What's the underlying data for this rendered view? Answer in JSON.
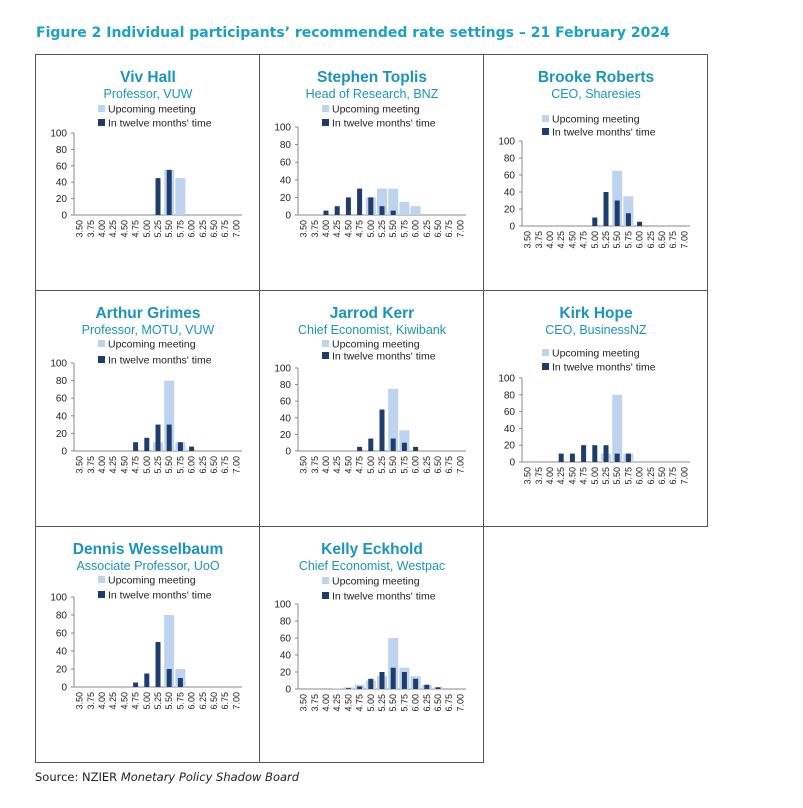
{
  "figure_title": "Figure 2 Individual participants’ recommended rate settings – 21 February 2024",
  "source_prefix": "Source: NZIER ",
  "source_italic": "Monetary Policy Shadow Board",
  "colors": {
    "upcoming": "#bed3ee",
    "twelve_months": "#1f3d6c",
    "title": "#1ba0c6",
    "panel_text": "#1a94bd"
  },
  "legend_labels": [
    "Upcoming meeting",
    "In twelve months' time"
  ],
  "chart_data": [
    {
      "type": "bar",
      "name_label": "Viv Hall",
      "role": "Professor, VUW",
      "categories": [
        "3.50",
        "3.75",
        "4.00",
        "4.25",
        "4.50",
        "4.75",
        "5.00",
        "5.25",
        "5.50",
        "5.75",
        "6.00",
        "6.25",
        "6.50",
        "6.75",
        "7.00"
      ],
      "yticks": [
        0,
        20,
        40,
        60,
        80,
        100
      ],
      "ylim": [
        0,
        100
      ],
      "series": [
        {
          "name": "Upcoming meeting",
          "values": [
            0,
            0,
            0,
            0,
            0,
            0,
            0,
            0,
            55,
            45,
            0,
            0,
            0,
            0,
            0
          ]
        },
        {
          "name": "In twelve months' time",
          "values": [
            0,
            0,
            0,
            0,
            0,
            0,
            0,
            45,
            55,
            0,
            0,
            0,
            0,
            0,
            0
          ]
        }
      ]
    },
    {
      "type": "bar",
      "name_label": "Stephen Toplis",
      "role": "Head of Research, BNZ",
      "categories": [
        "3.50",
        "3.75",
        "4.00",
        "4.25",
        "4.50",
        "4.75",
        "5.00",
        "5.25",
        "5.50",
        "5.75",
        "6.00",
        "6.25",
        "6.50",
        "6.75",
        "7.00"
      ],
      "yticks": [
        0,
        20,
        40,
        60,
        80,
        100
      ],
      "ylim": [
        0,
        100
      ],
      "series": [
        {
          "name": "Upcoming meeting",
          "values": [
            0,
            0,
            0,
            0,
            0,
            0,
            20,
            30,
            30,
            15,
            10,
            0,
            0,
            0,
            0
          ]
        },
        {
          "name": "In twelve months' time",
          "values": [
            0,
            0,
            5,
            10,
            20,
            30,
            20,
            10,
            5,
            0,
            0,
            0,
            0,
            0,
            0
          ]
        }
      ]
    },
    {
      "type": "bar",
      "name_label": "Brooke Roberts",
      "role": "CEO, Sharesies",
      "categories": [
        "3.50",
        "3.75",
        "4.00",
        "4.25",
        "4.50",
        "4.75",
        "5.00",
        "5.25",
        "5.50",
        "5.75",
        "6.00",
        "6.25",
        "6.50",
        "6.75",
        "7.00"
      ],
      "yticks": [
        0,
        20,
        40,
        60,
        80,
        100
      ],
      "ylim": [
        0,
        100
      ],
      "series": [
        {
          "name": "Upcoming meeting",
          "values": [
            0,
            0,
            0,
            0,
            0,
            0,
            0,
            0,
            65,
            35,
            0,
            0,
            0,
            0,
            0
          ]
        },
        {
          "name": "In twelve months' time",
          "values": [
            0,
            0,
            0,
            0,
            0,
            0,
            10,
            40,
            30,
            15,
            5,
            0,
            0,
            0,
            0
          ]
        }
      ]
    },
    {
      "type": "bar",
      "name_label": "Arthur Grimes",
      "role": "Professor, MOTU, VUW",
      "categories": [
        "3.50",
        "3.75",
        "4.00",
        "4.25",
        "4.50",
        "4.75",
        "5.00",
        "5.25",
        "5.50",
        "5.75",
        "6.00",
        "6.25",
        "6.50",
        "6.75",
        "7.00"
      ],
      "yticks": [
        0,
        20,
        40,
        60,
        80,
        100
      ],
      "ylim": [
        0,
        100
      ],
      "series": [
        {
          "name": "Upcoming meeting",
          "values": [
            0,
            0,
            0,
            0,
            0,
            0,
            0,
            10,
            80,
            10,
            0,
            0,
            0,
            0,
            0
          ]
        },
        {
          "name": "In twelve months' time",
          "values": [
            0,
            0,
            0,
            0,
            0,
            10,
            15,
            30,
            30,
            10,
            5,
            0,
            0,
            0,
            0
          ]
        }
      ]
    },
    {
      "type": "bar",
      "name_label": "Jarrod Kerr",
      "role": "Chief Economist, Kiwibank",
      "categories": [
        "3.50",
        "3.75",
        "4.00",
        "4.25",
        "4.50",
        "4.75",
        "5.00",
        "5.25",
        "5.50",
        "5.75",
        "6.00",
        "6.25",
        "6.50",
        "6.75",
        "7.00"
      ],
      "yticks": [
        0,
        20,
        40,
        60,
        80,
        100
      ],
      "ylim": [
        0,
        100
      ],
      "series": [
        {
          "name": "Upcoming meeting",
          "values": [
            0,
            0,
            0,
            0,
            0,
            0,
            0,
            0,
            75,
            25,
            0,
            0,
            0,
            0,
            0
          ]
        },
        {
          "name": "In twelve months' time",
          "values": [
            0,
            0,
            0,
            0,
            0,
            5,
            15,
            50,
            15,
            10,
            5,
            0,
            0,
            0,
            0
          ]
        }
      ]
    },
    {
      "type": "bar",
      "name_label": "Kirk Hope",
      "role": "CEO, BusinessNZ",
      "categories": [
        "3.50",
        "3.75",
        "4.00",
        "4.25",
        "4.50",
        "4.75",
        "5.00",
        "5.25",
        "5.50",
        "5.75",
        "6.00",
        "6.25",
        "6.50",
        "6.75",
        "7.00"
      ],
      "yticks": [
        0,
        20,
        40,
        60,
        80,
        100
      ],
      "ylim": [
        0,
        100
      ],
      "series": [
        {
          "name": "Upcoming meeting",
          "values": [
            0,
            0,
            0,
            0,
            0,
            0,
            0,
            10,
            80,
            10,
            0,
            0,
            0,
            0,
            0
          ]
        },
        {
          "name": "In twelve months' time",
          "values": [
            0,
            0,
            0,
            10,
            10,
            20,
            20,
            20,
            10,
            10,
            0,
            0,
            0,
            0,
            0
          ]
        }
      ]
    },
    {
      "type": "bar",
      "name_label": "Dennis Wesselbaum",
      "role": "Associate Professor, UoO",
      "categories": [
        "3.50",
        "3.75",
        "4.00",
        "4.25",
        "4.50",
        "4.75",
        "5.00",
        "5.25",
        "5.50",
        "5.75",
        "6.00",
        "6.25",
        "6.50",
        "6.75",
        "7.00"
      ],
      "yticks": [
        0,
        20,
        40,
        60,
        80,
        100
      ],
      "ylim": [
        0,
        100
      ],
      "series": [
        {
          "name": "Upcoming meeting",
          "values": [
            0,
            0,
            0,
            0,
            0,
            0,
            0,
            0,
            80,
            20,
            0,
            0,
            0,
            0,
            0
          ]
        },
        {
          "name": "In twelve months' time",
          "values": [
            0,
            0,
            0,
            0,
            0,
            5,
            15,
            50,
            20,
            10,
            0,
            0,
            0,
            0,
            0
          ]
        }
      ]
    },
    {
      "type": "bar",
      "name_label": "Kelly Eckhold",
      "role": "Chief Economist, Westpac",
      "categories": [
        "3.50",
        "3.75",
        "4.00",
        "4.25",
        "4.50",
        "4.75",
        "5.00",
        "5.25",
        "5.50",
        "5.75",
        "6.00",
        "6.25",
        "6.50",
        "6.75",
        "7.00"
      ],
      "yticks": [
        0,
        20,
        40,
        60,
        80,
        100
      ],
      "ylim": [
        0,
        100
      ],
      "series": [
        {
          "name": "Upcoming meeting",
          "values": [
            0,
            0,
            0,
            1,
            2,
            5,
            10,
            15,
            60,
            25,
            15,
            5,
            2,
            0,
            0
          ]
        },
        {
          "name": "In twelve months' time",
          "values": [
            0,
            0,
            0,
            0,
            1,
            3,
            12,
            20,
            25,
            20,
            12,
            5,
            2,
            0,
            0
          ]
        }
      ]
    }
  ]
}
